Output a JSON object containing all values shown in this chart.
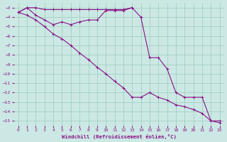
{
  "xlabel": "Windchill (Refroidissement éolien,°C)",
  "background_color": "#cce8e4",
  "grid_color": "#99ccbb",
  "line_color": "#881188",
  "xlim": [
    -0.5,
    23.5
  ],
  "ylim": [
    -15.5,
    -2.5
  ],
  "xticks": [
    0,
    1,
    2,
    3,
    4,
    5,
    6,
    7,
    8,
    9,
    10,
    11,
    12,
    13,
    14,
    15,
    16,
    17,
    18,
    19,
    20,
    21,
    22,
    23
  ],
  "yticks": [
    -3,
    -4,
    -5,
    -6,
    -7,
    -8,
    -9,
    -10,
    -11,
    -12,
    -13,
    -14,
    -15
  ],
  "line1_x": [
    0,
    1,
    2,
    3,
    4,
    5,
    6,
    7,
    8,
    9,
    10,
    11,
    12,
    13,
    14,
    15,
    16,
    17,
    18,
    19,
    20,
    21,
    22,
    23
  ],
  "line1_y": [
    -3.5,
    -3.0,
    -3.0,
    -3.2,
    -3.2,
    -3.2,
    -3.2,
    -3.2,
    -3.2,
    -3.2,
    -3.2,
    -3.2,
    -3.2,
    -3.0,
    -4.0,
    -8.3,
    -8.3,
    -9.5,
    -12.0,
    -12.5,
    -12.5,
    -12.5,
    -15.0,
    -15.0
  ],
  "line2_x": [
    0,
    1,
    2,
    3,
    4,
    5,
    6,
    7,
    8,
    9,
    10,
    11,
    12,
    13
  ],
  "line2_y": [
    -3.5,
    -3.0,
    -3.8,
    -4.3,
    -4.8,
    -4.5,
    -4.8,
    -4.5,
    -4.3,
    -4.3,
    -3.3,
    -3.3,
    -3.3,
    -3.0
  ],
  "line3_x": [
    0,
    1,
    2,
    3,
    4,
    5,
    6,
    7,
    8,
    9,
    10,
    11,
    12,
    13,
    14,
    15,
    16,
    17,
    18,
    19,
    20,
    21,
    22,
    23
  ],
  "line3_y": [
    -3.5,
    -3.8,
    -4.3,
    -5.0,
    -5.8,
    -6.3,
    -7.0,
    -7.8,
    -8.5,
    -9.3,
    -10.0,
    -10.8,
    -11.5,
    -12.5,
    -12.5,
    -12.0,
    -12.5,
    -12.8,
    -13.3,
    -13.5,
    -13.8,
    -14.2,
    -15.0,
    -15.2
  ]
}
